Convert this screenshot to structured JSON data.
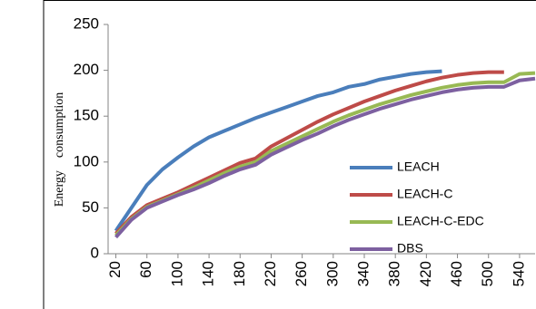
{
  "chart_data": {
    "type": "line",
    "y_label": "Energy    consumption",
    "x": [
      20,
      40,
      60,
      80,
      100,
      120,
      140,
      160,
      180,
      200,
      220,
      240,
      260,
      280,
      300,
      320,
      340,
      360,
      380,
      400,
      420,
      440,
      460,
      480,
      500,
      520,
      540,
      560
    ],
    "xlim": [
      10,
      560
    ],
    "xticks": [
      20,
      60,
      100,
      140,
      180,
      220,
      260,
      300,
      340,
      380,
      420,
      460,
      500,
      540
    ],
    "ylim": [
      0,
      250
    ],
    "yticks": [
      0,
      50,
      100,
      150,
      200,
      250
    ],
    "series": [
      {
        "name": "LEACH",
        "color": "#4a7ebb",
        "values": [
          25,
          50,
          75,
          92,
          105,
          117,
          127,
          134,
          141,
          148,
          154,
          160,
          166,
          172,
          176,
          182,
          185,
          190,
          193,
          196,
          198,
          199,
          null,
          null,
          null,
          null,
          null,
          null
        ]
      },
      {
        "name": "LEACH-C",
        "color": "#be4b48",
        "values": [
          22,
          40,
          53,
          60,
          67,
          75,
          83,
          91,
          99,
          104,
          117,
          126,
          135,
          144,
          152,
          159,
          166,
          172,
          178,
          183,
          188,
          192,
          195,
          197,
          198,
          198,
          null,
          null
        ]
      },
      {
        "name": "LEACH-C-EDC",
        "color": "#98b954",
        "values": [
          20,
          38,
          51,
          58,
          65,
          72,
          80,
          88,
          95,
          100,
          112,
          120,
          128,
          136,
          144,
          151,
          157,
          163,
          168,
          173,
          177,
          181,
          184,
          186,
          187,
          187,
          196,
          197
        ]
      },
      {
        "name": "DBS",
        "color": "#7d60a0",
        "values": [
          18,
          37,
          50,
          57,
          64,
          70,
          77,
          85,
          92,
          97,
          108,
          116,
          124,
          131,
          139,
          146,
          152,
          158,
          163,
          168,
          172,
          176,
          179,
          181,
          182,
          182,
          189,
          191
        ]
      }
    ]
  }
}
